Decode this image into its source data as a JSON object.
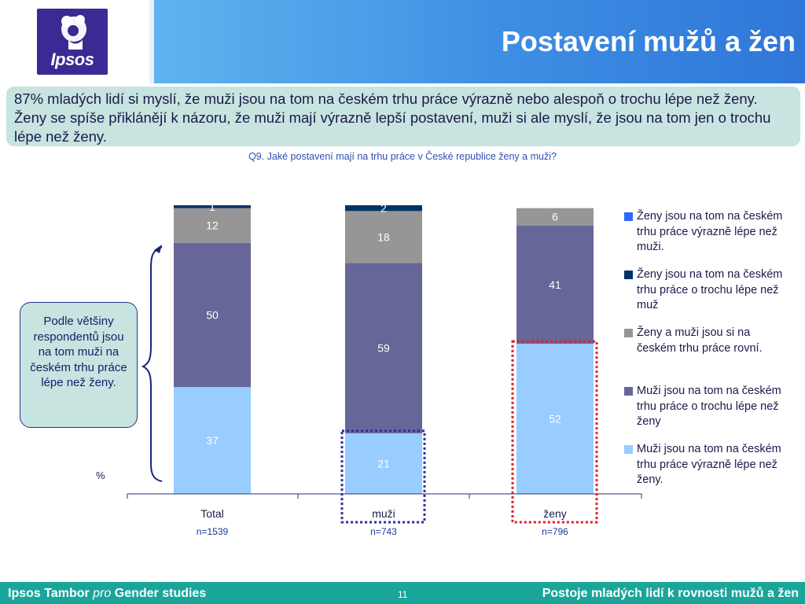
{
  "header": {
    "logo_text": "Ipsos",
    "title": "Postavení mužů a žen"
  },
  "summary": "87% mladých lidí si myslí, že muži jsou na tom na českém trhu práce výrazně nebo alespoň o trochu lépe než ženy. Ženy se spíše přiklánějí k názoru, že muži mají výrazně lepší postavení, muži si ale myslí, že jsou na tom jen o trochu lépe než ženy.",
  "question": "Q9. Jaké postavení mají na trhu práce v České republice ženy a muži?",
  "callout": "Podle většiny respondentů jsou na tom muži na českém trhu práce lépe než ženy.",
  "chart_data": {
    "type": "bar",
    "stacked": true,
    "unit_label": "%",
    "categories": [
      "Total",
      "muži",
      "ženy"
    ],
    "sample_sizes": [
      "n=1539",
      "n=743",
      "n=796"
    ],
    "series": [
      {
        "name": "Muži jsou na tom na českém trhu práce výrazně lépe než ženy.",
        "values": [
          37,
          21,
          52
        ],
        "color": "#99ccff"
      },
      {
        "name": "Muži jsou na tom na českém trhu práce o trochu lépe než ženy",
        "values": [
          50,
          59,
          41
        ],
        "color": "#666699"
      },
      {
        "name": "Ženy a muži jsou si na českém trhu práce rovní.",
        "values": [
          12,
          18,
          6
        ],
        "color": "#969696"
      },
      {
        "name": "Ženy jsou na tom na českém trhu práce o trochu lépe než muž",
        "values": [
          1,
          2,
          0
        ],
        "color": "#003366"
      },
      {
        "name": "Ženy jsou na tom na českém trhu práce výrazně lépe než muži.",
        "values": [
          0,
          0,
          0
        ],
        "color": "#3366ff"
      }
    ],
    "data_labels": [
      [
        "37",
        "21",
        "52"
      ],
      [
        "50",
        "59",
        "41"
      ],
      [
        "12",
        "18",
        "6"
      ],
      [
        "1",
        "2",
        ""
      ],
      [
        "",
        "",
        ""
      ]
    ],
    "ylim": [
      0,
      100
    ],
    "legend_order": [
      4,
      3,
      2,
      1,
      0
    ],
    "legend_position": "right",
    "highlight_colors": {
      "muži": "#2b2f9a",
      "ženy": "#e0202a"
    }
  },
  "footer": {
    "left_brand": "Ipsos Tambor",
    "left_pro": "pro",
    "left_topic": "Gender studies",
    "page": "11",
    "right": "Postoje mladých lidí k rovnosti mužů a žen"
  }
}
